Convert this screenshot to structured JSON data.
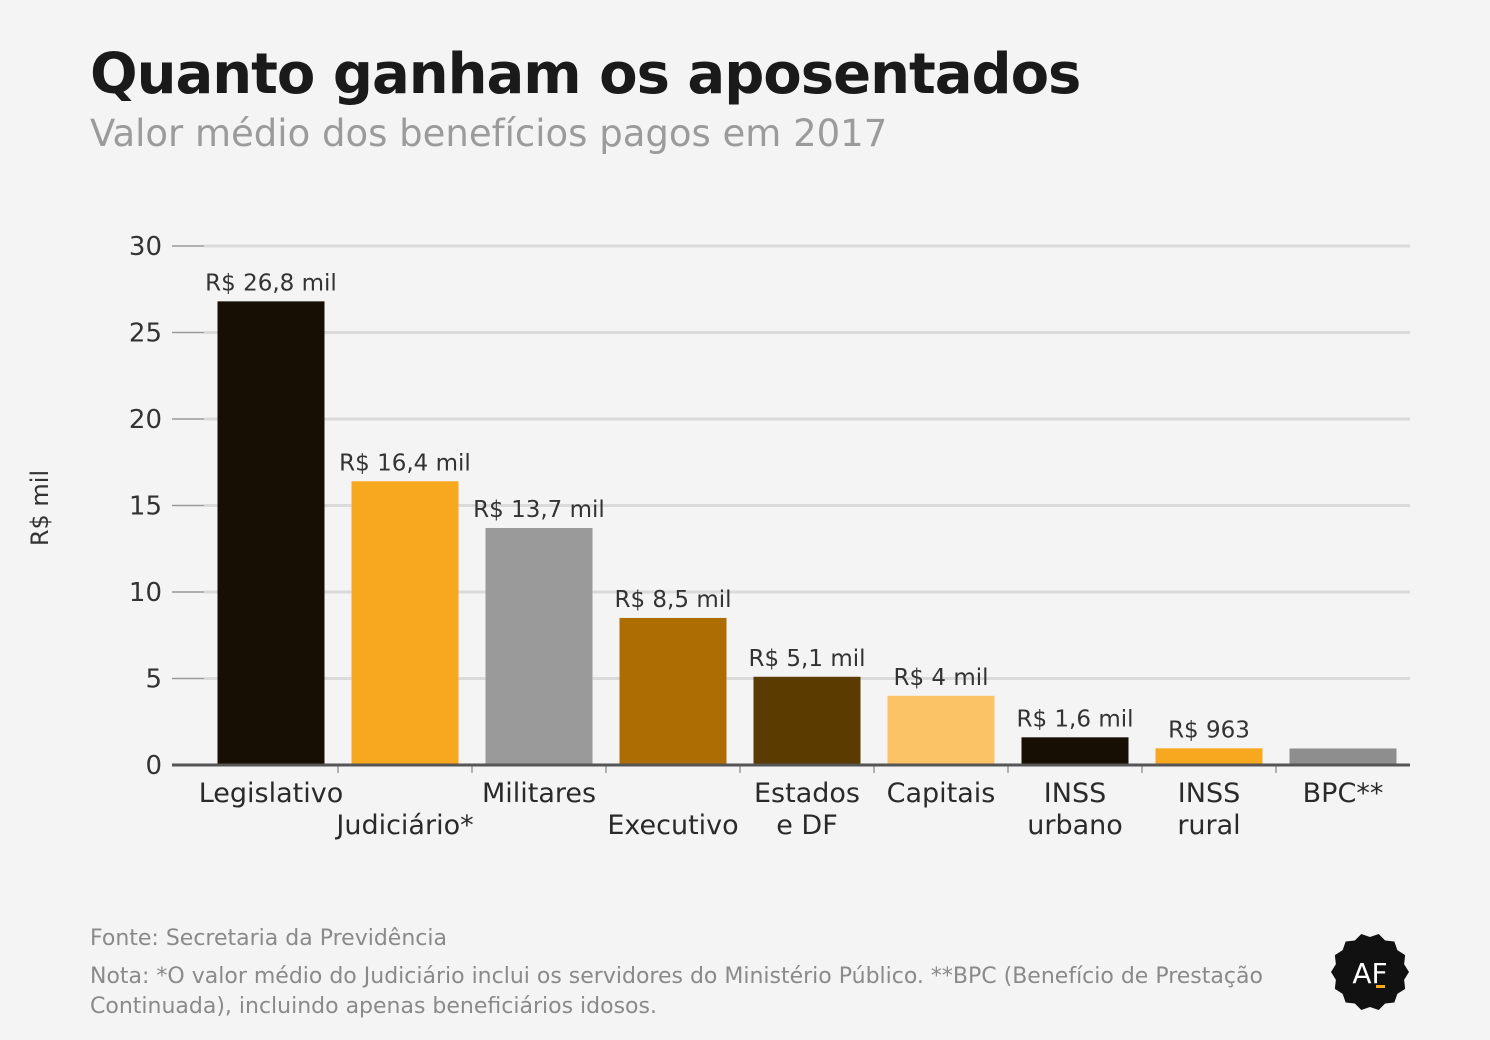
{
  "header": {
    "title": "Quanto ganham os aposentados",
    "subtitle": "Valor médio dos benefícios pagos em 2017"
  },
  "chart_data": {
    "type": "bar",
    "title": "Quanto ganham os aposentados",
    "subtitle": "Valor médio dos benefícios pagos em 2017",
    "ylabel": "R$ mil",
    "xlabel": "",
    "ylim": [
      0,
      30
    ],
    "yticks": [
      0,
      5,
      10,
      15,
      20,
      25,
      30
    ],
    "grid": true,
    "categories": [
      [
        "Legislativo"
      ],
      [
        "Judiciário*"
      ],
      [
        "Militares"
      ],
      [
        "Executivo"
      ],
      [
        "Estados",
        "e DF"
      ],
      [
        "Capitais"
      ],
      [
        "INSS",
        "urbano"
      ],
      [
        "INSS",
        "rural"
      ],
      [
        "BPC**"
      ]
    ],
    "values": [
      26.8,
      16.4,
      13.7,
      8.5,
      5.1,
      4.0,
      1.6,
      0.963,
      0.954
    ],
    "data_labels": [
      "R$ 26,8 mil",
      "R$ 16,4 mil",
      "R$ 13,7 mil",
      "R$ 8,5 mil",
      "R$ 5,1 mil",
      "R$ 4 mil",
      "R$ 1,6 mil",
      "R$ 963",
      ""
    ],
    "colors": [
      "#170f04",
      "#f7a81e",
      "#9a9a9a",
      "#ae6d02",
      "#5c3b01",
      "#fbc266",
      "#170f04",
      "#f7a81e",
      "#8e8e8e"
    ]
  },
  "footer": {
    "source": "Fonte: Secretaria da Previdência",
    "note": "Nota: *O valor médio do Judiciário inclui os servidores do Ministério Público. **BPC (Benefício de Prestação Continuada), incluindo apenas beneficiários idosos."
  },
  "logo": {
    "text": "AF",
    "color": "#111111",
    "accent": "#f7a81e"
  }
}
